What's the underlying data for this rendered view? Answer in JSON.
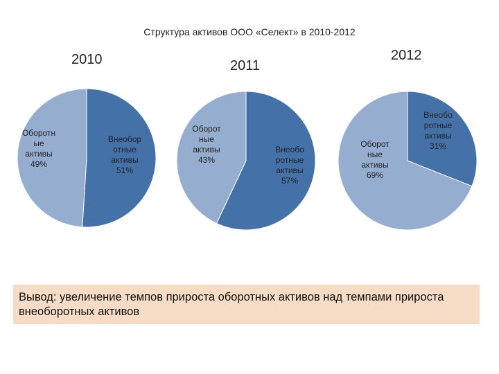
{
  "title": "Структура активов ООО «Селект» в 2010-2012",
  "colors": {
    "current_assets": "#95adcf",
    "noncurrent_assets": "#4472a8"
  },
  "chart_data": [
    {
      "type": "pie",
      "title": "2010",
      "slices": [
        {
          "label_lines": [
            "Оборотн",
            "ые",
            "активы",
            "49%"
          ],
          "value": 49,
          "color": "#95adcf"
        },
        {
          "label_lines": [
            "Внеобор",
            "отные",
            "активы",
            "51%"
          ],
          "value": 51,
          "color": "#4472a8"
        }
      ]
    },
    {
      "type": "pie",
      "title": "2011",
      "slices": [
        {
          "label_lines": [
            "Оборот",
            "ные",
            "активы",
            "43%"
          ],
          "value": 43,
          "color": "#95adcf"
        },
        {
          "label_lines": [
            "Внеобо",
            "ротные",
            "активы",
            "57%"
          ],
          "value": 57,
          "color": "#4472a8"
        }
      ]
    },
    {
      "type": "pie",
      "title": "2012",
      "slices": [
        {
          "label_lines": [
            "Оборот",
            "ные",
            "активы",
            "69%"
          ],
          "value": 69,
          "color": "#95adcf"
        },
        {
          "label_lines": [
            "Внеобо",
            "ротные",
            "активы",
            "31%"
          ],
          "value": 31,
          "color": "#4472a8"
        }
      ]
    }
  ],
  "conclusion": "Вывод: увеличение темпов прироста оборотных активов над темпами прироста внеоборотных активов"
}
